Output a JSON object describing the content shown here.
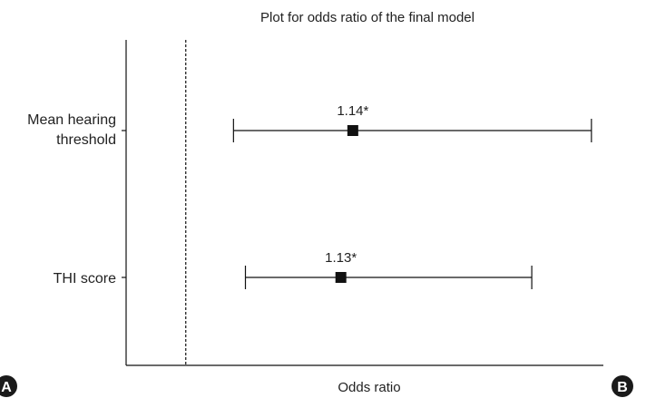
{
  "chart_data": {
    "type": "forest",
    "title": "Plot for odds ratio of the final model",
    "xlabel": "Odds ratio",
    "reference_line": 1.0,
    "xlim": [
      0.95,
      1.35
    ],
    "categories": [
      {
        "label_lines": [
          "Mean hearing",
          "threshold"
        ],
        "estimate": 1.14,
        "estimate_label": "1.14*",
        "ci_low": 1.04,
        "ci_high": 1.34
      },
      {
        "label_lines": [
          "THI score"
        ],
        "estimate": 1.13,
        "estimate_label": "1.13*",
        "ci_low": 1.05,
        "ci_high": 1.29
      }
    ]
  },
  "panel_badges": {
    "left": "A",
    "right": "B"
  },
  "colors": {
    "ink": "#111111",
    "text": "#222222",
    "badge": "#1a1a1a"
  }
}
